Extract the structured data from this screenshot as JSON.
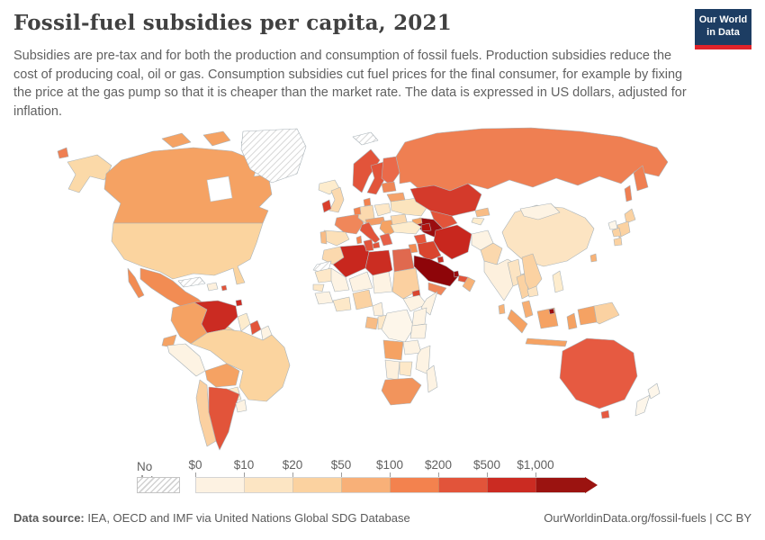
{
  "header": {
    "title": "Fossil-fuel subsidies per capita, 2021",
    "subtitle": "Subsidies are pre-tax and for both the production and consumption of fossil fuels. Production subsidies reduce the cost of producing coal, oil or gas. Consumption subsidies cut fuel prices for the final consumer, for example by fixing the price at the gas pump so that it is cheaper than the market rate. The data is expressed in US dollars, adjusted for inflation.",
    "logo": {
      "line1": "Our World",
      "line2": "in Data"
    }
  },
  "colors": {
    "logo_bg": "#1d3d63",
    "logo_stripe": "#e0232a",
    "country_border": "#a9b3b9",
    "nodata_hatch": "#d2d2d2"
  },
  "legend": {
    "no_data_label": "No data",
    "ticks": [
      "$0",
      "$10",
      "$20",
      "$50",
      "$100",
      "$200",
      "$500",
      "$1,000"
    ],
    "bucket_colors": [
      "#fdf2e2",
      "#fce5c3",
      "#fbd2a0",
      "#f8b078",
      "#f3824e",
      "#e2543a",
      "#cb2b22",
      "#9b1310"
    ]
  },
  "footer": {
    "source_label": "Data source:",
    "source_text": " IEA, OECD and IMF via United Nations Global SDG Database",
    "credit": "OurWorldinData.org/fossil-fuels | CC BY"
  },
  "chart_data": {
    "type": "heatmap",
    "title": "Fossil-fuel subsidies per capita, 2021",
    "unit": "US dollars per capita",
    "legend_buckets": [
      "No data",
      "$0-10",
      "$10-20",
      "$20-50",
      "$50-100",
      "$100-200",
      "$200-500",
      "$500-1,000",
      "$1,000+"
    ],
    "notes": "World choropleth; values encoded as color buckets per country"
  },
  "map": {
    "countries": {
      "greenland": "nodata",
      "svalbard": "nodata",
      "cuba": "nodata",
      "western-sahara": "nodata",
      "chukotka": "#ef7f52",
      "alaska": "#fbd9a8",
      "canada": "#f5a263",
      "canada-island-1": "#f5a263",
      "canada-island-2": "#f5a263",
      "canada-island-3": "#f5a263",
      "usa": "#fbd49f",
      "baja": "#f28c53",
      "mexico": "#f28c53",
      "centam-west": "#fdf0dd",
      "centam-east": "#fbd2a2",
      "hispaniola": "#fdf0dd",
      "puerto-rico": "#e2543a",
      "trinidad": "#cb2b22",
      "colombia": "#f5a263",
      "venezuela": "#cb2b22",
      "guyana": "#fdeccd",
      "suriname": "#e2543a",
      "french-guiana": "#fdf3e3",
      "ecuador": "#f5a263",
      "peru": "#fdf3e3",
      "brazil": "#fbd49f",
      "bolivia": "#f5a263",
      "paraguay": "#fdeccd",
      "chile": "#fbd0a0",
      "argentina": "#e2543a",
      "uruguay": "#fdf3e3",
      "iceland": "#fdeccd",
      "ireland": "#d9402c",
      "uk": "#fbd9ae",
      "norway": "#e2543a",
      "sweden": "#e2543a",
      "finland": "#ea6a4a",
      "denmark": "#f3824e",
      "france": "#f0875a",
      "spain": "#fce0b8",
      "portugal": "#f8bc85",
      "germany": "#fbd9ae",
      "benelux": "#f3824e",
      "poland": "#fde8c8",
      "central-europe": "#f49d66",
      "italy": "#e2543a",
      "sicily": "#e2543a",
      "sardinia": "#f3824e",
      "balkans": "#f5a263",
      "greece": "#e66048",
      "romania": "#fbd9ae",
      "ukraine": "#fbe4bd",
      "belarus": "#f5a26b",
      "baltics": "#ef8757",
      "russia": "#ef7f52",
      "kamchatka": "#ef7f52",
      "sakhalin": "#ef7f52",
      "kazakhstan": "#d43a2b",
      "uzbekistan": "#e2543a",
      "turkmenistan": "#9a0d10",
      "kyrgyzstan": "#f8bc85",
      "tajikistan": "#fdeccd",
      "georgia": "#f5a263",
      "azerbaijan": "#b1120f",
      "turkey": "#fdeccd",
      "syria": "#e6573c",
      "jordan-israel": "#f28c53",
      "iraq": "#d9452f",
      "iran": "#c8271e",
      "saudi-arabia": "#8e0509",
      "kuwait": "#cb2b22",
      "qatar": "#9a0d10",
      "uae": "#e2543a",
      "oman": "#f7b277",
      "yemen": "#f0875a",
      "afghanistan": "#fdf3e3",
      "pakistan": "#fbd8ad",
      "india": "#fdf0dd",
      "bangladesh": "#fce4c2",
      "sri-lanka": "#f7b277",
      "morocco": "#fbd9ae",
      "algeria": "#c8271e",
      "tunisia": "#e2543a",
      "libya": "#cb2d22",
      "egypt": "#e0694f",
      "mauritania": "#fde8c8",
      "mali": "#fdf3e3",
      "niger": "#fdf3e3",
      "chad": "#fdf3e3",
      "sudan": "#fbd0a0",
      "eritrea": "#d9452f",
      "ethiopia": "#fdf3e3",
      "somalia": "#fdf3e3",
      "senegal": "#fde8c8",
      "guinea": "#fdf3e3",
      "ghana-ivory": "#fde8c8",
      "nigeria": "#fbd2a2",
      "cameroon": "#fdf0dd",
      "gabon": "#f8bc85",
      "congo": "#fde8c8",
      "drc": "#fdf6ea",
      "kenya": "#fdf3e3",
      "tanzania": "#fdf3e3",
      "angola": "#f5a263",
      "zambia": "#fdf3e3",
      "mozambique": "#fdf3e3",
      "namibia": "#fdf0dd",
      "botswana": "#fde8c8",
      "south-africa": "#f2945c",
      "madagascar": "#fdf3e3",
      "china": "#fce4c2",
      "mongolia": "#fdf3e3",
      "myanmar": "#fce4c2",
      "thailand": "#fbd2a2",
      "vietnam": "#fbd2a2",
      "cambodia": "#fce4c2",
      "malaysia": "#f7ae72",
      "sumatra": "#f5a263",
      "java": "#f5a263",
      "borneo": "#f5a263",
      "brunei": "#9a0d10",
      "sulawesi": "#f5a263",
      "philippines": "#fdeccd",
      "west-papua": "#f5a263",
      "png": "#fbd2a2",
      "japan-hokkaido": "#fbd2a2",
      "japan-honshu": "#fbd2a2",
      "japan-kyushu": "#fbd2a2",
      "north-korea": "#fdf6ea",
      "south-korea": "#fbd2a2",
      "taiwan": "#f7b277",
      "australia": "#e65a41",
      "tasmania": "#e65a41",
      "nz-north": "#fdf6ea",
      "nz-south": "#fdf6ea"
    }
  }
}
